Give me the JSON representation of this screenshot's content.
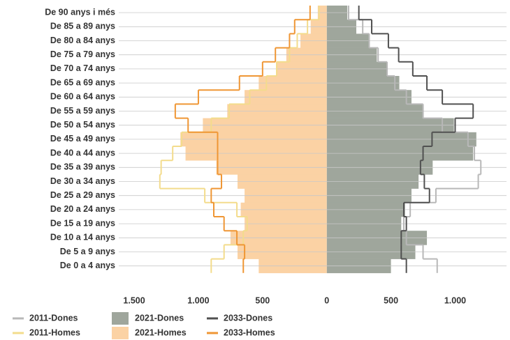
{
  "chart_data": {
    "type": "pyramid",
    "categories": [
      "De 90 anys i més",
      "De 85 a 89 anys",
      "De 80 a 84 anys",
      "De 75 a 79 anys",
      "De 70 a 74 anys",
      "De 65 a 69 anys",
      "De 60 a 64 anys",
      "De 55 a 59 anys",
      "De 50 a 54 anys",
      "De 45 a 49 anys",
      "De 40 a 44 anys",
      "De 35 a 39 anys",
      "De 30 a 34 anys",
      "De 25 a 29 anys",
      "De 20 a 24 anys",
      "De 15 a 19 anys",
      "De 10 a 14 anys",
      "De 5 a 9 anys",
      "De 0 a 4 anys"
    ],
    "xlim": [
      -1620,
      1400
    ],
    "xticks": [
      {
        "value": -1500,
        "label": "1.500"
      },
      {
        "value": -1000,
        "label": "1.000"
      },
      {
        "value": -500,
        "label": "500"
      },
      0,
      500,
      {
        "value": 1000,
        "label": "1.000"
      }
    ],
    "grid": true,
    "series": [
      {
        "name": "2011-Dones",
        "style": "line",
        "side": "right",
        "color": "#b8b8b8",
        "values": [
          170,
          280,
          330,
          400,
          470,
          530,
          620,
          750,
          900,
          1100,
          1150,
          1200,
          1180,
          850,
          650,
          600,
          620,
          750,
          860
        ]
      },
      {
        "name": "2011-Homes",
        "style": "line",
        "side": "left",
        "color": "#f3dc8c",
        "values": [
          60,
          150,
          230,
          290,
          390,
          470,
          600,
          760,
          900,
          1130,
          1200,
          1290,
          1300,
          950,
          700,
          620,
          650,
          800,
          900
        ]
      },
      {
        "name": "2021-Dones",
        "style": "bar",
        "side": "right",
        "color": "#9fa69c",
        "values": [
          160,
          230,
          335,
          390,
          470,
          565,
          660,
          745,
          990,
          1165,
          1140,
          825,
          715,
          660,
          610,
          580,
          780,
          690,
          500
        ]
      },
      {
        "name": "2021-Homes",
        "style": "bar",
        "side": "left",
        "color": "#fbd2a4",
        "values": [
          70,
          125,
          205,
          315,
          395,
          530,
          640,
          775,
          965,
          1140,
          1100,
          860,
          695,
          640,
          670,
          640,
          750,
          695,
          530
        ]
      },
      {
        "name": "2033-Dones",
        "style": "line",
        "side": "right",
        "color": "#505050",
        "values": [
          250,
          350,
          480,
          560,
          670,
          780,
          900,
          1140,
          1000,
          820,
          750,
          730,
          760,
          800,
          600,
          620,
          580,
          580,
          620
        ]
      },
      {
        "name": "2033-Homes",
        "style": "line",
        "side": "left",
        "color": "#ef9634",
        "values": [
          130,
          250,
          290,
          400,
          500,
          680,
          1000,
          1180,
          1080,
          850,
          850,
          850,
          820,
          900,
          880,
          800,
          700,
          640,
          650
        ]
      }
    ]
  }
}
